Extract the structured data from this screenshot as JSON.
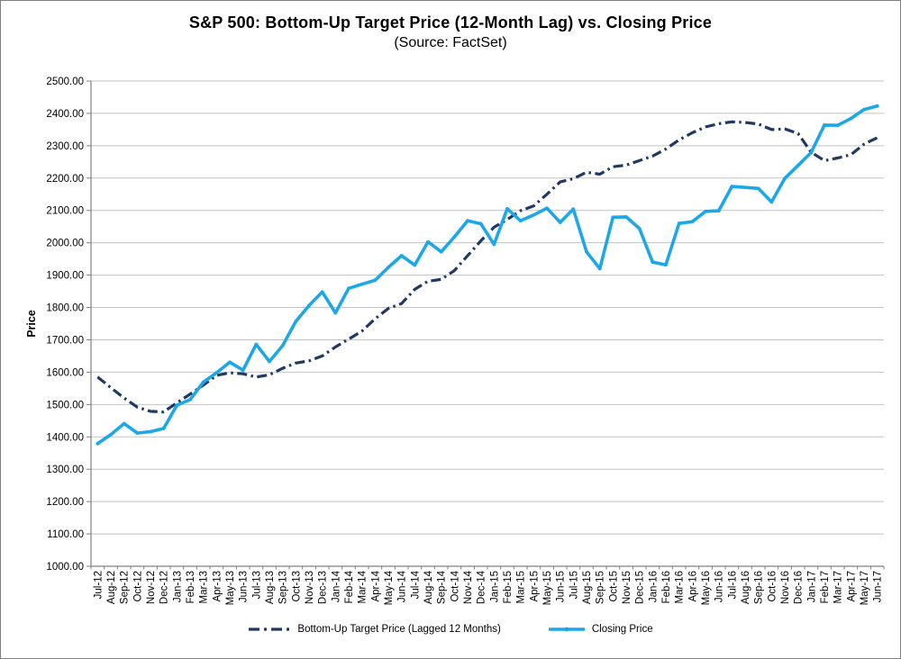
{
  "chart_data": {
    "type": "line",
    "title": "S&P 500: Bottom-Up Target Price (12-Month Lag) vs. Closing Price",
    "subtitle": "(Source: FactSet)",
    "ylabel": "Price",
    "ylim": [
      1000,
      2500
    ],
    "y_tick_step": 100,
    "y_tick_labels": [
      "2500.00",
      "2400.00",
      "2300.00",
      "2200.00",
      "2100.00",
      "2000.00",
      "1900.00",
      "1800.00",
      "1700.00",
      "1600.00",
      "1500.00",
      "1400.00",
      "1300.00",
      "1200.00",
      "1100.00",
      "1000.00"
    ],
    "grid": "horizontal",
    "legend_position": "bottom",
    "colors": {
      "gridline": "#C3C3C3",
      "axis": "#808080",
      "text": "#000000"
    },
    "categories": [
      "Jul-12",
      "Aug-12",
      "Sep-12",
      "Oct-12",
      "Nov-12",
      "Dec-12",
      "Jan-13",
      "Feb-13",
      "Mar-13",
      "Apr-13",
      "May-13",
      "Jun-13",
      "Jul-13",
      "Aug-13",
      "Sep-13",
      "Oct-13",
      "Nov-13",
      "Dec-13",
      "Jan-14",
      "Feb-14",
      "Mar-14",
      "Apr-14",
      "May-14",
      "Jun-14",
      "Jul-14",
      "Aug-14",
      "Sep-14",
      "Oct-14",
      "Nov-14",
      "Dec-14",
      "Jan-15",
      "Feb-15",
      "Mar-15",
      "Apr-15",
      "May-15",
      "Jun-15",
      "Jul-15",
      "Aug-15",
      "Sep-15",
      "Oct-15",
      "Nov-15",
      "Dec-15",
      "Jan-16",
      "Feb-16",
      "Mar-16",
      "Apr-16",
      "May-16",
      "Jun-16",
      "Jul-16",
      "Aug-16",
      "Sep-16",
      "Oct-16",
      "Nov-16",
      "Dec-16",
      "Jan-17",
      "Feb-17",
      "Mar-17",
      "Apr-17",
      "May-17",
      "Jun-17"
    ],
    "series": [
      {
        "name": "Bottom-Up Target Price (Lagged 12 Months)",
        "color": "#1F3864",
        "line_style": "long-dash-dot",
        "values": [
          1585,
          1552,
          1520,
          1492,
          1479,
          1477,
          1505,
          1532,
          1560,
          1590,
          1598,
          1595,
          1585,
          1592,
          1612,
          1628,
          1635,
          1650,
          1678,
          1702,
          1727,
          1765,
          1797,
          1812,
          1856,
          1881,
          1887,
          1914,
          1960,
          2006,
          2048,
          2072,
          2099,
          2114,
          2150,
          2188,
          2198,
          2218,
          2212,
          2235,
          2240,
          2254,
          2268,
          2290,
          2318,
          2340,
          2358,
          2368,
          2374,
          2372,
          2367,
          2350,
          2352,
          2338,
          2280,
          2254,
          2262,
          2272,
          2305,
          2325
        ]
      },
      {
        "name": "Closing Price",
        "color": "#1CA7E8",
        "line_style": "solid-with-markers",
        "values": [
          1379,
          1407,
          1441,
          1412,
          1416,
          1426,
          1498,
          1515,
          1569,
          1598,
          1631,
          1606,
          1686,
          1633,
          1682,
          1757,
          1806,
          1848,
          1783,
          1859,
          1872,
          1884,
          1924,
          1960,
          1931,
          2003,
          1972,
          2018,
          2068,
          2059,
          1995,
          2105,
          2068,
          2086,
          2107,
          2063,
          2104,
          1972,
          1920,
          2079,
          2080,
          2044,
          1940,
          1932,
          2060,
          2065,
          2097,
          2099,
          2174,
          2171,
          2168,
          2126,
          2199,
          2239,
          2279,
          2364,
          2363,
          2384,
          2412,
          2423
        ]
      }
    ]
  }
}
